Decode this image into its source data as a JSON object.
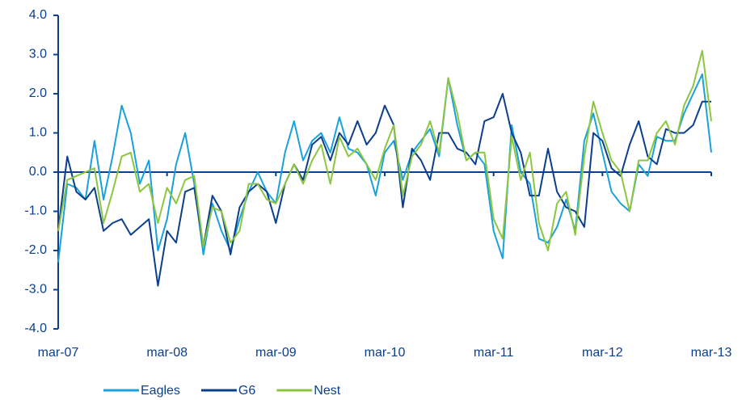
{
  "chart_data": {
    "type": "line",
    "categories": [
      "mar-07",
      null,
      null,
      null,
      null,
      null,
      null,
      null,
      null,
      null,
      null,
      null,
      "mar-08",
      null,
      null,
      null,
      null,
      null,
      null,
      null,
      null,
      null,
      null,
      null,
      "mar-09",
      null,
      null,
      null,
      null,
      null,
      null,
      null,
      null,
      null,
      null,
      null,
      "mar-10",
      null,
      null,
      null,
      null,
      null,
      null,
      null,
      null,
      null,
      null,
      null,
      "mar-11",
      null,
      null,
      null,
      null,
      null,
      null,
      null,
      null,
      null,
      null,
      null,
      "mar-12",
      null,
      null,
      null,
      null,
      null,
      null,
      null,
      null,
      null,
      null,
      null,
      "mar-13"
    ],
    "series": [
      {
        "name": "Eagles",
        "color": "#1aa0dc",
        "values": [
          -2.3,
          -0.3,
          -0.4,
          -0.7,
          0.8,
          -0.7,
          0.4,
          1.7,
          1.0,
          -0.3,
          0.3,
          -2.0,
          -1.2,
          0.2,
          1.0,
          -0.3,
          -2.1,
          -0.8,
          -1.5,
          -2.0,
          -1.2,
          -0.5,
          0.0,
          -0.5,
          -0.8,
          0.5,
          1.3,
          0.3,
          0.8,
          1.0,
          0.5,
          1.4,
          0.6,
          0.5,
          0.2,
          -0.6,
          0.5,
          0.8,
          -0.2,
          0.5,
          0.8,
          1.1,
          0.4,
          2.4,
          1.2,
          0.3,
          0.5,
          0.2,
          -1.5,
          -2.2,
          1.2,
          0.0,
          -0.3,
          -1.7,
          -1.8,
          -1.4,
          -0.7,
          -1.5,
          0.8,
          1.5,
          0.5,
          -0.5,
          -0.8,
          -1.0,
          0.2,
          -0.1,
          0.9,
          0.8,
          0.8,
          1.5,
          2.0,
          2.5,
          0.5
        ]
      },
      {
        "name": "G6",
        "color": "#0b3f8c",
        "values": [
          -1.5,
          0.4,
          -0.5,
          -0.7,
          -0.4,
          -1.5,
          -1.3,
          -1.2,
          -1.6,
          -1.4,
          -1.2,
          -2.9,
          -1.5,
          -1.8,
          -0.5,
          -0.4,
          -1.9,
          -0.6,
          -1.0,
          -2.1,
          -0.9,
          -0.5,
          -0.3,
          -0.5,
          -1.3,
          -0.3,
          0.2,
          -0.2,
          0.7,
          0.9,
          0.3,
          1.0,
          0.7,
          1.3,
          0.7,
          1.0,
          1.7,
          1.2,
          -0.9,
          0.6,
          0.3,
          -0.2,
          1.0,
          1.0,
          0.6,
          0.5,
          0.2,
          1.3,
          1.4,
          2.0,
          1.0,
          0.5,
          -0.6,
          -0.6,
          0.6,
          -0.5,
          -0.9,
          -1.0,
          -1.4,
          1.0,
          0.8,
          0.1,
          -0.1,
          0.7,
          1.3,
          0.4,
          0.2,
          1.1,
          1.0,
          1.0,
          1.2,
          1.8,
          1.8
        ]
      },
      {
        "name": "Nest",
        "color": "#8cc63f",
        "values": [
          -1.5,
          -0.2,
          -0.1,
          0.0,
          0.1,
          -1.3,
          -0.5,
          0.4,
          0.5,
          -0.5,
          -0.3,
          -1.3,
          -0.4,
          -0.8,
          -0.2,
          -0.1,
          -1.9,
          -0.9,
          -1.0,
          -1.8,
          -1.5,
          -0.3,
          -0.3,
          -0.7,
          -0.8,
          -0.3,
          0.2,
          -0.3,
          0.3,
          0.7,
          -0.3,
          0.9,
          0.4,
          0.6,
          0.2,
          -0.2,
          0.6,
          1.2,
          -0.6,
          0.4,
          0.7,
          1.3,
          0.5,
          2.4,
          1.5,
          0.3,
          0.5,
          0.5,
          -1.2,
          -1.7,
          0.9,
          -0.2,
          0.5,
          -1.3,
          -2.0,
          -0.8,
          -0.5,
          -1.6,
          0.4,
          1.8,
          1.0,
          0.3,
          0.0,
          -1.0,
          0.3,
          0.3,
          1.0,
          1.3,
          0.7,
          1.7,
          2.2,
          3.1,
          1.3
        ]
      }
    ],
    "ylim": [
      -4,
      4
    ],
    "yticks": [
      {
        "value": -4,
        "label": "-4.0"
      },
      {
        "value": -3,
        "label": "-3.0"
      },
      {
        "value": -2,
        "label": "-2.0"
      },
      {
        "value": -1,
        "label": "-1.0"
      },
      {
        "value": 0,
        "label": "0.0"
      },
      {
        "value": 1,
        "label": "1.0"
      },
      {
        "value": 2,
        "label": "2.0"
      },
      {
        "value": 3,
        "label": "3.0"
      },
      {
        "value": 4,
        "label": "4.0"
      }
    ],
    "grid": false,
    "legend": "bottom-left"
  }
}
